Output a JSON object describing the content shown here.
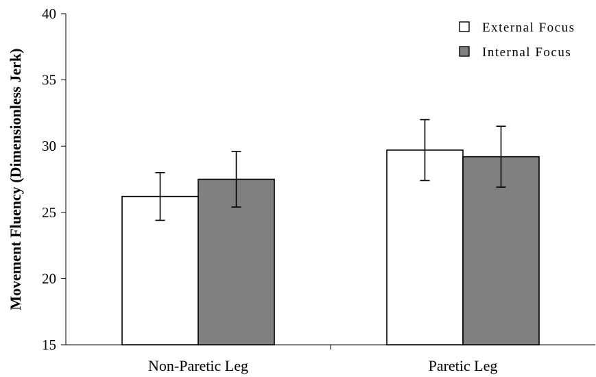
{
  "chart_data": {
    "type": "bar",
    "title": "",
    "xlabel": "",
    "ylabel": "Movement Fluency (Dimensionless Jerk)",
    "ylim": [
      15,
      40
    ],
    "yticks": [
      15,
      20,
      25,
      30,
      35,
      40
    ],
    "grid": false,
    "legend_position": "top-right",
    "categories": [
      "Non-Paretic Leg",
      "Paretic Leg"
    ],
    "series": [
      {
        "name": "External Focus",
        "color": "#ffffff",
        "values": [
          26.2,
          29.7
        ],
        "error": [
          1.8,
          2.3
        ]
      },
      {
        "name": "Internal Focus",
        "color": "#808080",
        "values": [
          27.5,
          29.2
        ],
        "error": [
          2.1,
          2.3
        ]
      }
    ]
  }
}
